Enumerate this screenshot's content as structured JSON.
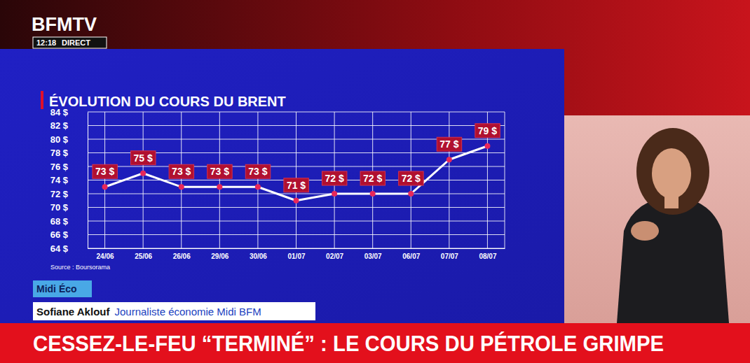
{
  "chart_data": {
    "type": "line",
    "title": "ÉVOLUTION DU COURS DU BRENT",
    "source": "Source : Boursorama",
    "categories": [
      "24/06",
      "25/06",
      "26/06",
      "29/06",
      "30/06",
      "01/07",
      "02/07",
      "03/07",
      "06/07",
      "07/07",
      "08/07"
    ],
    "values": [
      73,
      75,
      73,
      73,
      73,
      71,
      72,
      72,
      72,
      77,
      79
    ],
    "value_labels": [
      "73 $",
      "75 $",
      "73 $",
      "73 $",
      "73 $",
      "71 $",
      "72 $",
      "72 $",
      "72 $",
      "77 $",
      "79 $"
    ],
    "color": "#ffffff",
    "marker": "circle",
    "data_labels": true,
    "grid": true,
    "ylim": [
      64,
      84
    ],
    "yticks": [
      {
        "value": 64,
        "label": "64 $"
      },
      {
        "value": 66,
        "label": "66 $"
      },
      {
        "value": 68,
        "label": "68 $"
      },
      {
        "value": 70,
        "label": "70 $"
      },
      {
        "value": 72,
        "label": "72 $"
      },
      {
        "value": 74,
        "label": "74 $"
      },
      {
        "value": 76,
        "label": "76 $"
      },
      {
        "value": 78,
        "label": "78 $"
      },
      {
        "value": 80,
        "label": "80 $"
      },
      {
        "value": 82,
        "label": "82 $"
      },
      {
        "value": 84,
        "label": "84 $"
      }
    ]
  },
  "page": {
    "channel": "BFMTV",
    "time": "12:18",
    "live": "DIRECT",
    "program": "Midi Éco",
    "presenter": "Sofiane Aklouf",
    "presenter_role": "Journaliste économie Midi BFM",
    "headline": "CESSEZ-LE-FEU “TERMINÉ” : LE COURS DU PÉTROLE GRIMPE"
  }
}
